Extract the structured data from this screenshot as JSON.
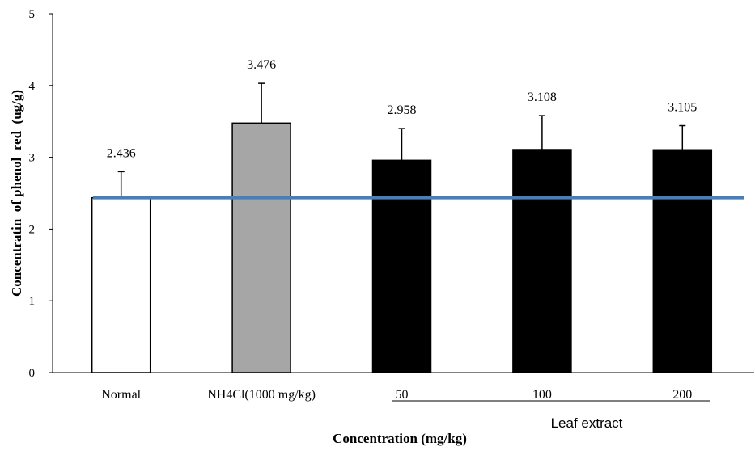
{
  "chart_data": {
    "type": "bar",
    "categories": [
      "Normal",
      "NH4Cl(1000 mg/kg)",
      "50",
      "100",
      "200"
    ],
    "values": [
      2.436,
      3.476,
      2.958,
      3.108,
      3.105
    ],
    "value_labels": [
      "2.436",
      "3.476",
      "2.958",
      "3.108",
      "3.105"
    ],
    "error_upper": [
      2.8,
      4.03,
      3.4,
      3.58,
      3.44
    ],
    "bar_colors": [
      "#ffffff",
      "#a6a6a6",
      "#000000",
      "#000000",
      "#000000"
    ],
    "bar_edge_color": "#000000",
    "reference_line": {
      "value": 2.436,
      "color": "#4a7eb5"
    },
    "ylim": [
      0,
      5
    ],
    "yticks": [
      "0",
      "1",
      "2",
      "3",
      "4",
      "5"
    ],
    "ylabel": "Concentratin  of phenol  red  (ug/g)",
    "xlabel": "Concentration (mg/kg)",
    "group_label": "Leaf extract",
    "grid": false
  }
}
